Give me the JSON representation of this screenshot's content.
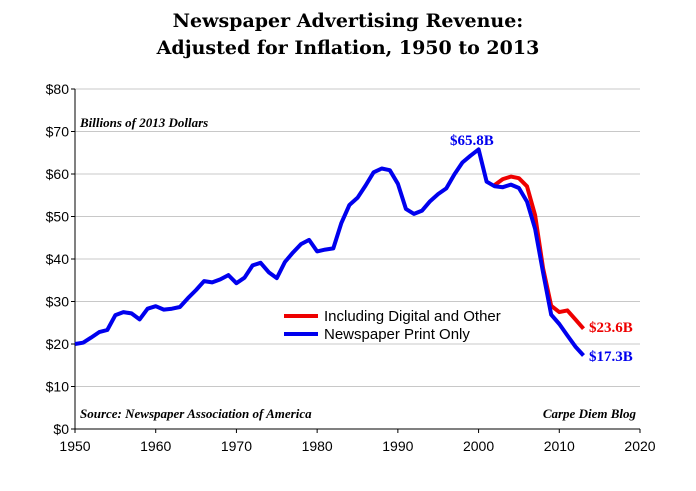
{
  "chart_data": {
    "type": "line",
    "title": "Newspaper Advertising Revenue:",
    "subtitle": "Adjusted for Inflation, 1950 to 2013",
    "unit_note": "Billions of 2013 Dollars",
    "source": "Source: Newspaper Association of America",
    "credit": "Carpe Diem Blog",
    "xlim": [
      1950,
      2020
    ],
    "ylim": [
      0,
      80
    ],
    "x_ticks": [
      1950,
      1960,
      1970,
      1980,
      1990,
      2000,
      2010,
      2020
    ],
    "y_ticks": [
      0,
      10,
      20,
      30,
      40,
      50,
      60,
      70,
      80
    ],
    "y_tick_labels": [
      "$0",
      "$10",
      "$20",
      "$30",
      "$40",
      "$50",
      "$60",
      "$70",
      "$80"
    ],
    "grid": "horizontal",
    "legend": "center-right",
    "series": [
      {
        "name": "Including Digital and Other",
        "color": "#ee0000",
        "x": [
          2002,
          2003,
          2004,
          2005,
          2006,
          2007,
          2008,
          2009,
          2010,
          2011,
          2012,
          2013
        ],
        "values": [
          57.4,
          58.8,
          59.4,
          59.0,
          57.1,
          50.3,
          37.8,
          29.0,
          27.5,
          27.9,
          25.8,
          23.6
        ],
        "end_label": "$23.6B"
      },
      {
        "name": "Newspaper Print Only",
        "color": "#0000ee",
        "x": [
          1950,
          1951,
          1952,
          1953,
          1954,
          1955,
          1956,
          1957,
          1958,
          1959,
          1960,
          1961,
          1962,
          1963,
          1964,
          1965,
          1966,
          1967,
          1968,
          1969,
          1970,
          1971,
          1972,
          1973,
          1974,
          1975,
          1976,
          1977,
          1978,
          1979,
          1980,
          1981,
          1982,
          1983,
          1984,
          1985,
          1986,
          1987,
          1988,
          1989,
          1990,
          1991,
          1992,
          1993,
          1994,
          1995,
          1996,
          1997,
          1998,
          1999,
          2000,
          2001,
          2002,
          2003,
          2004,
          2005,
          2006,
          2007,
          2008,
          2009,
          2010,
          2011,
          2012,
          2013
        ],
        "values": [
          20.0,
          20.3,
          21.5,
          22.8,
          23.3,
          26.8,
          27.5,
          27.2,
          25.8,
          28.3,
          28.9,
          28.1,
          28.3,
          28.7,
          30.8,
          32.7,
          34.8,
          34.5,
          35.2,
          36.2,
          34.3,
          35.6,
          38.5,
          39.1,
          36.9,
          35.5,
          39.3,
          41.5,
          43.5,
          44.5,
          41.8,
          42.2,
          42.5,
          48.5,
          52.7,
          54.4,
          57.3,
          60.4,
          61.3,
          60.9,
          57.7,
          51.8,
          50.6,
          51.4,
          53.6,
          55.3,
          56.6,
          59.9,
          62.7,
          64.3,
          65.8,
          58.2,
          57.1,
          56.9,
          57.5,
          56.7,
          53.5,
          47.1,
          36.8,
          26.9,
          24.7,
          22.0,
          19.4,
          17.3
        ],
        "peak_label": "$65.8B",
        "end_label": "$17.3B"
      }
    ]
  }
}
